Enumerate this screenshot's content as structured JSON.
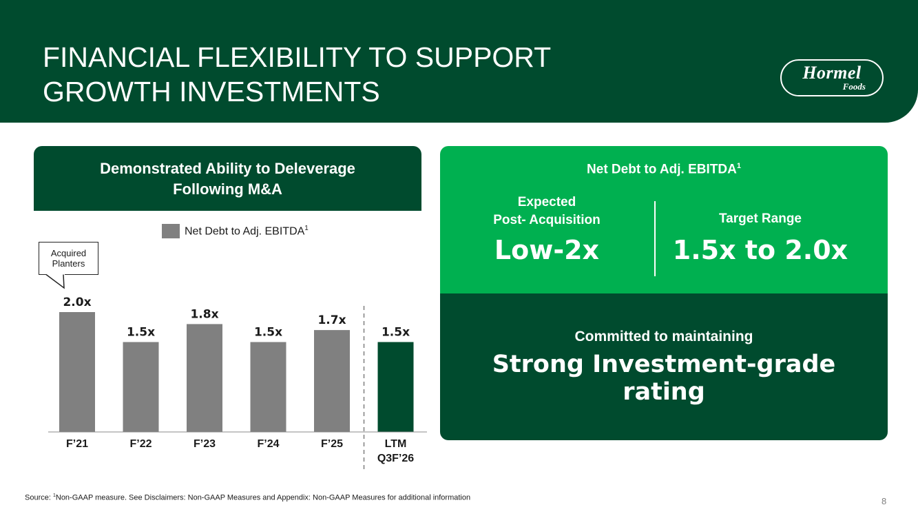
{
  "header": {
    "title_line1": "FINANCIAL FLEXIBILITY TO SUPPORT",
    "title_line2": "GROWTH INVESTMENTS",
    "logo_main": "Hormel",
    "logo_sub": "Foods"
  },
  "left_panel": {
    "title_line1": "Demonstrated Ability to Deleverage",
    "title_line2": "Following M&A",
    "callout_line1": "Acquired",
    "callout_line2": "Planters"
  },
  "chart_data": {
    "type": "bar",
    "categories": [
      "F’21",
      "F’22",
      "F’23",
      "F’24",
      "F’25",
      "LTM Q3F’26"
    ],
    "series": [
      {
        "name": "Net Debt to Adj. EBITDA",
        "values": [
          2.0,
          1.5,
          1.8,
          1.5,
          1.7,
          1.5
        ],
        "data_labels": [
          "2.0x",
          "1.5x",
          "1.8x",
          "1.5x",
          "1.7x",
          "1.5x"
        ]
      }
    ],
    "legend_label": "Net Debt to Adj. EBITDA",
    "legend_footnote": "1",
    "legend_position": "top",
    "ylim": [
      0,
      2.1
    ],
    "grid": false,
    "bar_colors": [
      "#808080",
      "#808080",
      "#808080",
      "#808080",
      "#808080",
      "#004b2e"
    ],
    "separator_before_last": true
  },
  "right_panel": {
    "title": "Net Debt to Adj. EBITDA",
    "title_footnote": "1",
    "left_col": {
      "label_line1": "Expected",
      "label_line2": "Post- Acquisition",
      "value": "Low-2x"
    },
    "right_col": {
      "label": "Target Range",
      "value": "1.5x to 2.0x"
    },
    "bottom": {
      "subtitle": "Committed to maintaining",
      "headline_line1": "Strong Investment-grade",
      "headline_line2": "rating"
    }
  },
  "footer": {
    "source_prefix": "Source: ",
    "source_footnote": "1",
    "source_text": "Non-GAAP measure. See Disclaimers: Non-GAAP Measures and Appendix: Non-GAAP Measures for additional information",
    "page_number": "8"
  },
  "colors": {
    "dark_green": "#004b2e",
    "bright_green": "#00b050",
    "bar_gray": "#808080"
  }
}
